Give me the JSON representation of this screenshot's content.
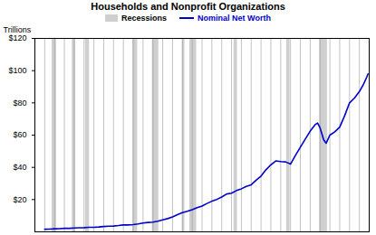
{
  "chart_data": {
    "type": "line",
    "title": "Households and Nonprofit Organizations",
    "y_label": "Trillions",
    "x": [
      1952,
      1953,
      1954,
      1955,
      1956,
      1957,
      1958,
      1959,
      1960,
      1961,
      1962,
      1963,
      1964,
      1965,
      1966,
      1967,
      1968,
      1969,
      1970,
      1971,
      1972,
      1973,
      1974,
      1975,
      1976,
      1977,
      1978,
      1979,
      1980,
      1981,
      1982,
      1983,
      1984,
      1985,
      1986,
      1987,
      1988,
      1989,
      1990,
      1991,
      1992,
      1993,
      1994,
      1995,
      1996,
      1997,
      1998,
      1999,
      2000,
      2001,
      2002,
      2003,
      2004,
      2005,
      2006,
      2007,
      2007.5,
      2008,
      2008.75,
      2009.25,
      2010,
      2011,
      2012,
      2013,
      2014,
      2015,
      2016,
      2016.75,
      2017.5,
      2017.75
    ],
    "series": [
      {
        "name": "Nominal Net Worth",
        "color": "#0000cc",
        "line_style": "solid",
        "values": [
          1.6,
          1.7,
          1.9,
          2.0,
          2.2,
          2.2,
          2.4,
          2.5,
          2.6,
          2.8,
          2.8,
          3.0,
          3.3,
          3.5,
          3.6,
          3.9,
          4.3,
          4.3,
          4.5,
          4.9,
          5.5,
          5.8,
          6.0,
          6.6,
          7.4,
          8.2,
          9.3,
          10.6,
          11.9,
          12.8,
          13.8,
          15.0,
          16.0,
          17.6,
          19.0,
          20.1,
          21.6,
          23.5,
          24.0,
          25.6,
          26.7,
          28.2,
          29.2,
          32.0,
          34.6,
          38.5,
          41.6,
          44.0,
          43.6,
          43.4,
          42.0,
          47.5,
          52.5,
          57.5,
          62.5,
          66.5,
          67.5,
          64.5,
          57,
          55,
          60,
          62,
          65,
          72,
          80,
          83,
          87,
          91,
          96,
          98
        ]
      }
    ],
    "recessions": {
      "name": "Recessions",
      "color": "#cfcfcf",
      "ranges": [
        [
          1953.5,
          1954.4
        ],
        [
          1957.6,
          1958.3
        ],
        [
          1960.3,
          1961.1
        ],
        [
          1969.9,
          1970.9
        ],
        [
          1973.9,
          1975.2
        ],
        [
          1980.0,
          1980.5
        ],
        [
          1981.5,
          1982.9
        ],
        [
          1990.5,
          1991.2
        ],
        [
          2001.2,
          2001.9
        ],
        [
          2007.9,
          2009.5
        ]
      ]
    },
    "xlim": [
      1950,
      2018
    ],
    "xticks": [
      1950,
      1952,
      1954,
      1956,
      1958,
      1960,
      1962,
      1964,
      1966,
      1968,
      1970,
      1972,
      1974,
      1976,
      1978,
      1980,
      1982,
      1984,
      1986,
      1988,
      1990,
      1992,
      1994,
      1996,
      1998,
      2000,
      2002,
      2004,
      2006,
      2008,
      2010,
      2012,
      2014,
      2016,
      2018
    ],
    "ylim": [
      0,
      120
    ],
    "yticks": [
      {
        "value": 20,
        "label": "$20"
      },
      {
        "value": 40,
        "label": "$40"
      },
      {
        "value": 60,
        "label": "$60"
      },
      {
        "value": 80,
        "label": "$80"
      },
      {
        "value": 100,
        "label": "$100"
      },
      {
        "value": 120,
        "label": "$120"
      }
    ],
    "grid": true,
    "legend": "top",
    "tick_labels": "y"
  }
}
